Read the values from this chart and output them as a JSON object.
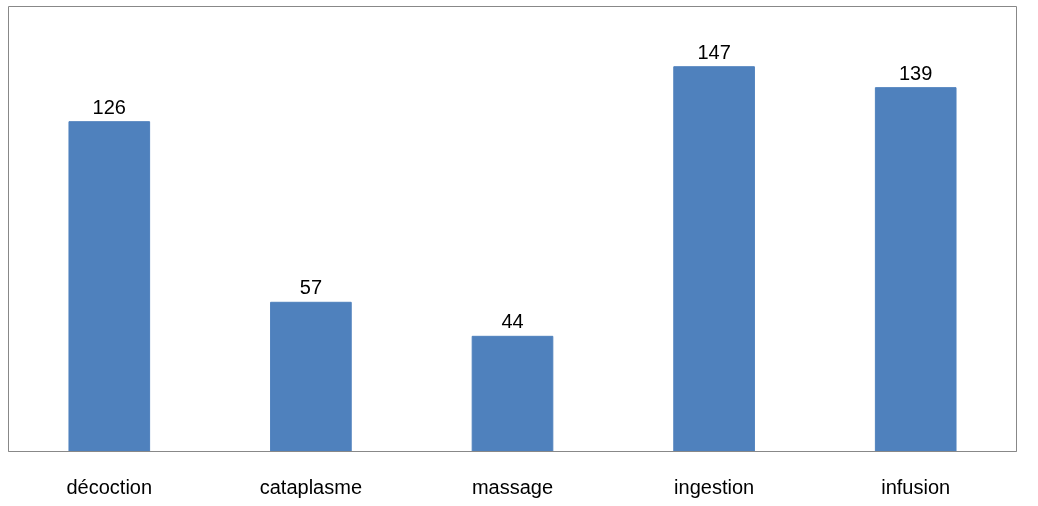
{
  "chart_data": {
    "type": "bar",
    "categories": [
      "décoction",
      "cataplasme",
      "massage",
      "ingestion",
      "infusion"
    ],
    "values": [
      126,
      57,
      44,
      147,
      139
    ],
    "color": "#4f81bd",
    "ylim": [
      0,
      170
    ],
    "data_labels": true,
    "grid": false
  }
}
